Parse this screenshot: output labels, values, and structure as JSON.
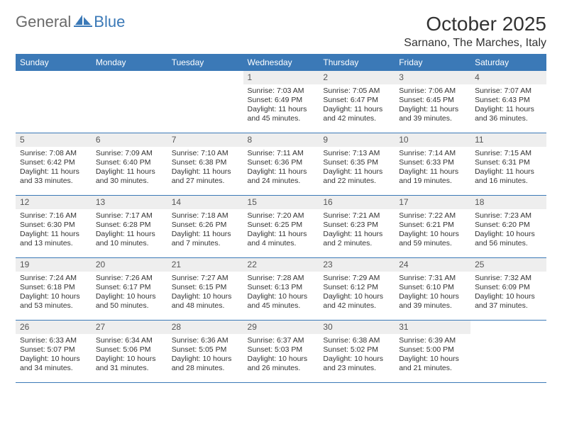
{
  "logo": {
    "text1": "General",
    "text2": "Blue"
  },
  "title": "October 2025",
  "location": "Sarnano, The Marches, Italy",
  "colors": {
    "brand_blue": "#3b79b7",
    "header_text": "#ffffff",
    "daynum_bg": "#eeeeee",
    "body_text": "#333333",
    "logo_gray": "#6a6a6a"
  },
  "weekdays": [
    "Sunday",
    "Monday",
    "Tuesday",
    "Wednesday",
    "Thursday",
    "Friday",
    "Saturday"
  ],
  "weeks": [
    [
      null,
      null,
      null,
      {
        "n": "1",
        "sr": "Sunrise: 7:03 AM",
        "ss": "Sunset: 6:49 PM",
        "d1": "Daylight: 11 hours",
        "d2": "and 45 minutes."
      },
      {
        "n": "2",
        "sr": "Sunrise: 7:05 AM",
        "ss": "Sunset: 6:47 PM",
        "d1": "Daylight: 11 hours",
        "d2": "and 42 minutes."
      },
      {
        "n": "3",
        "sr": "Sunrise: 7:06 AM",
        "ss": "Sunset: 6:45 PM",
        "d1": "Daylight: 11 hours",
        "d2": "and 39 minutes."
      },
      {
        "n": "4",
        "sr": "Sunrise: 7:07 AM",
        "ss": "Sunset: 6:43 PM",
        "d1": "Daylight: 11 hours",
        "d2": "and 36 minutes."
      }
    ],
    [
      {
        "n": "5",
        "sr": "Sunrise: 7:08 AM",
        "ss": "Sunset: 6:42 PM",
        "d1": "Daylight: 11 hours",
        "d2": "and 33 minutes."
      },
      {
        "n": "6",
        "sr": "Sunrise: 7:09 AM",
        "ss": "Sunset: 6:40 PM",
        "d1": "Daylight: 11 hours",
        "d2": "and 30 minutes."
      },
      {
        "n": "7",
        "sr": "Sunrise: 7:10 AM",
        "ss": "Sunset: 6:38 PM",
        "d1": "Daylight: 11 hours",
        "d2": "and 27 minutes."
      },
      {
        "n": "8",
        "sr": "Sunrise: 7:11 AM",
        "ss": "Sunset: 6:36 PM",
        "d1": "Daylight: 11 hours",
        "d2": "and 24 minutes."
      },
      {
        "n": "9",
        "sr": "Sunrise: 7:13 AM",
        "ss": "Sunset: 6:35 PM",
        "d1": "Daylight: 11 hours",
        "d2": "and 22 minutes."
      },
      {
        "n": "10",
        "sr": "Sunrise: 7:14 AM",
        "ss": "Sunset: 6:33 PM",
        "d1": "Daylight: 11 hours",
        "d2": "and 19 minutes."
      },
      {
        "n": "11",
        "sr": "Sunrise: 7:15 AM",
        "ss": "Sunset: 6:31 PM",
        "d1": "Daylight: 11 hours",
        "d2": "and 16 minutes."
      }
    ],
    [
      {
        "n": "12",
        "sr": "Sunrise: 7:16 AM",
        "ss": "Sunset: 6:30 PM",
        "d1": "Daylight: 11 hours",
        "d2": "and 13 minutes."
      },
      {
        "n": "13",
        "sr": "Sunrise: 7:17 AM",
        "ss": "Sunset: 6:28 PM",
        "d1": "Daylight: 11 hours",
        "d2": "and 10 minutes."
      },
      {
        "n": "14",
        "sr": "Sunrise: 7:18 AM",
        "ss": "Sunset: 6:26 PM",
        "d1": "Daylight: 11 hours",
        "d2": "and 7 minutes."
      },
      {
        "n": "15",
        "sr": "Sunrise: 7:20 AM",
        "ss": "Sunset: 6:25 PM",
        "d1": "Daylight: 11 hours",
        "d2": "and 4 minutes."
      },
      {
        "n": "16",
        "sr": "Sunrise: 7:21 AM",
        "ss": "Sunset: 6:23 PM",
        "d1": "Daylight: 11 hours",
        "d2": "and 2 minutes."
      },
      {
        "n": "17",
        "sr": "Sunrise: 7:22 AM",
        "ss": "Sunset: 6:21 PM",
        "d1": "Daylight: 10 hours",
        "d2": "and 59 minutes."
      },
      {
        "n": "18",
        "sr": "Sunrise: 7:23 AM",
        "ss": "Sunset: 6:20 PM",
        "d1": "Daylight: 10 hours",
        "d2": "and 56 minutes."
      }
    ],
    [
      {
        "n": "19",
        "sr": "Sunrise: 7:24 AM",
        "ss": "Sunset: 6:18 PM",
        "d1": "Daylight: 10 hours",
        "d2": "and 53 minutes."
      },
      {
        "n": "20",
        "sr": "Sunrise: 7:26 AM",
        "ss": "Sunset: 6:17 PM",
        "d1": "Daylight: 10 hours",
        "d2": "and 50 minutes."
      },
      {
        "n": "21",
        "sr": "Sunrise: 7:27 AM",
        "ss": "Sunset: 6:15 PM",
        "d1": "Daylight: 10 hours",
        "d2": "and 48 minutes."
      },
      {
        "n": "22",
        "sr": "Sunrise: 7:28 AM",
        "ss": "Sunset: 6:13 PM",
        "d1": "Daylight: 10 hours",
        "d2": "and 45 minutes."
      },
      {
        "n": "23",
        "sr": "Sunrise: 7:29 AM",
        "ss": "Sunset: 6:12 PM",
        "d1": "Daylight: 10 hours",
        "d2": "and 42 minutes."
      },
      {
        "n": "24",
        "sr": "Sunrise: 7:31 AM",
        "ss": "Sunset: 6:10 PM",
        "d1": "Daylight: 10 hours",
        "d2": "and 39 minutes."
      },
      {
        "n": "25",
        "sr": "Sunrise: 7:32 AM",
        "ss": "Sunset: 6:09 PM",
        "d1": "Daylight: 10 hours",
        "d2": "and 37 minutes."
      }
    ],
    [
      {
        "n": "26",
        "sr": "Sunrise: 6:33 AM",
        "ss": "Sunset: 5:07 PM",
        "d1": "Daylight: 10 hours",
        "d2": "and 34 minutes."
      },
      {
        "n": "27",
        "sr": "Sunrise: 6:34 AM",
        "ss": "Sunset: 5:06 PM",
        "d1": "Daylight: 10 hours",
        "d2": "and 31 minutes."
      },
      {
        "n": "28",
        "sr": "Sunrise: 6:36 AM",
        "ss": "Sunset: 5:05 PM",
        "d1": "Daylight: 10 hours",
        "d2": "and 28 minutes."
      },
      {
        "n": "29",
        "sr": "Sunrise: 6:37 AM",
        "ss": "Sunset: 5:03 PM",
        "d1": "Daylight: 10 hours",
        "d2": "and 26 minutes."
      },
      {
        "n": "30",
        "sr": "Sunrise: 6:38 AM",
        "ss": "Sunset: 5:02 PM",
        "d1": "Daylight: 10 hours",
        "d2": "and 23 minutes."
      },
      {
        "n": "31",
        "sr": "Sunrise: 6:39 AM",
        "ss": "Sunset: 5:00 PM",
        "d1": "Daylight: 10 hours",
        "d2": "and 21 minutes."
      },
      null
    ]
  ]
}
